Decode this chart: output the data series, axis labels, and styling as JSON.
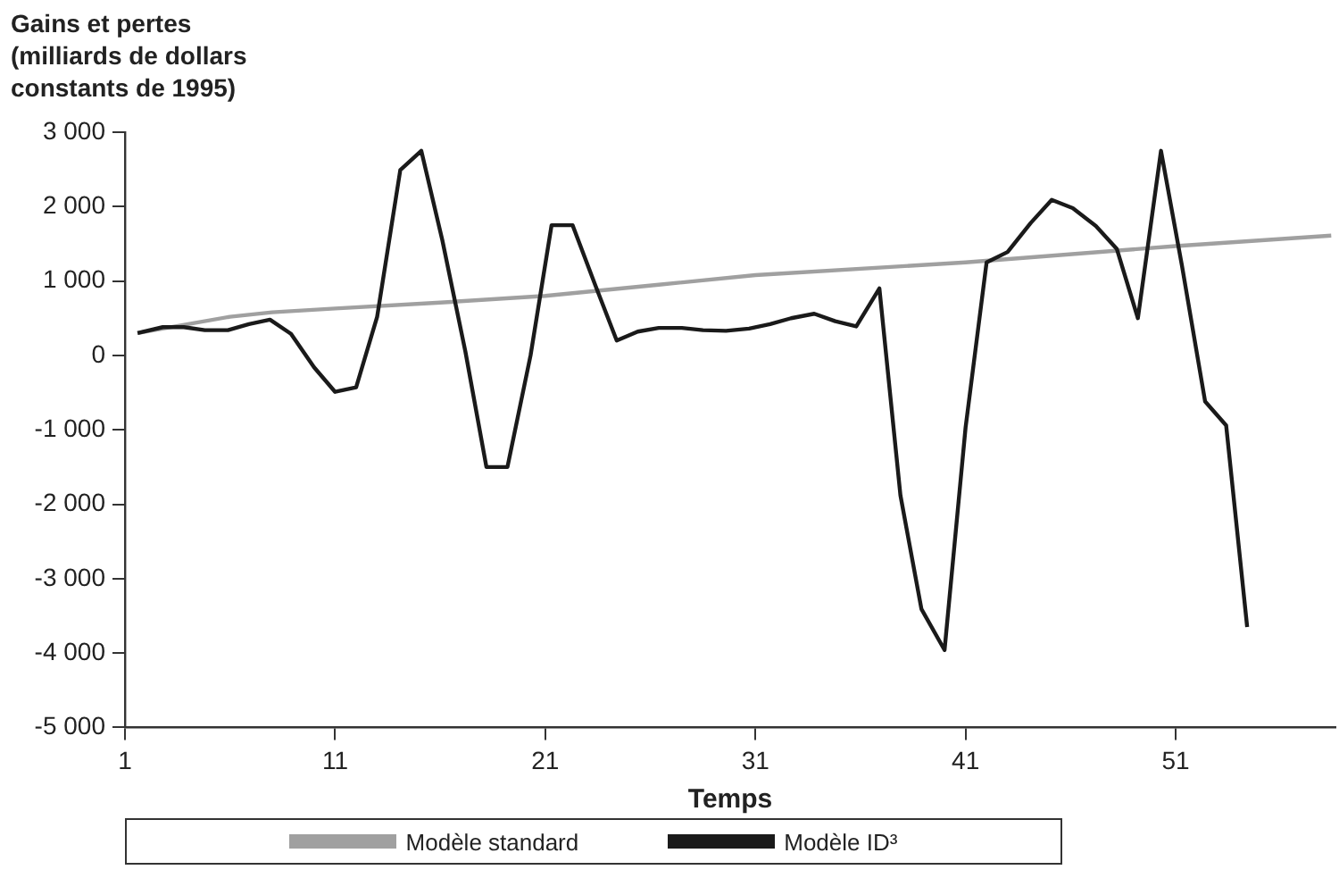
{
  "chart_data": {
    "type": "line",
    "ylabel": "Gains et pertes (milliards de dollars constants de 1995)",
    "xlabel": "Temps",
    "xlim": [
      1,
      58.6
    ],
    "xticks": [
      1,
      11,
      21,
      31,
      41,
      51
    ],
    "ylim": [
      -5000,
      3000
    ],
    "yticks": [
      {
        "value": -5000,
        "label": "-5 000"
      },
      {
        "value": -4000,
        "label": "-4 000"
      },
      {
        "value": -3000,
        "label": "-3 000"
      },
      {
        "value": -2000,
        "label": "-2 000"
      },
      {
        "value": -1000,
        "label": "-1 000"
      },
      0,
      {
        "value": 1000,
        "label": "1 000"
      },
      {
        "value": 2000,
        "label": "2 000"
      },
      {
        "value": 3000,
        "label": "3 000"
      }
    ],
    "grid": false,
    "legend": "bottom",
    "marker": "none",
    "line_style": "solid",
    "series": [
      {
        "name": "Modèle standard",
        "color": "#a0a0a0",
        "x": [
          1.6,
          4,
          6,
          8,
          11,
          16,
          21,
          26.4,
          31,
          41,
          51,
          58.4
        ],
        "values": [
          300,
          420,
          520,
          580,
          630,
          710,
          800,
          950,
          1080,
          1250,
          1470,
          1610
        ]
      },
      {
        "name": "Modèle ID³",
        "color": "#1a1a1a",
        "x": [
          1.6,
          2.8,
          3.8,
          4.8,
          5.9,
          6.9,
          7.9,
          8.9,
          10.0,
          11.0,
          12.0,
          13.0,
          14.1,
          15.1,
          16.1,
          17.2,
          18.2,
          19.2,
          20.3,
          21.3,
          22.3,
          23.4,
          24.4,
          25.4,
          26.4,
          27.5,
          28.5,
          29.6,
          30.7,
          31.7,
          32.7,
          33.8,
          34.8,
          35.8,
          36.9,
          37.9,
          38.9,
          40.0,
          41.0,
          42.0,
          43.0,
          44.1,
          45.1,
          46.1,
          47.2,
          48.2,
          49.2,
          50.3,
          51.3,
          52.4,
          53.4,
          54.4
        ],
        "values": [
          300,
          380,
          380,
          340,
          340,
          420,
          480,
          290,
          -160,
          -490,
          -430,
          520,
          2490,
          2750,
          1550,
          50,
          -1500,
          -1500,
          0,
          1750,
          1750,
          930,
          200,
          320,
          370,
          370,
          340,
          330,
          360,
          420,
          500,
          560,
          460,
          390,
          900,
          -1880,
          -3410,
          -3960,
          -970,
          1250,
          1390,
          1780,
          2090,
          1980,
          1740,
          1430,
          500,
          2750,
          1200,
          -620,
          -940,
          -3650
        ]
      }
    ]
  }
}
